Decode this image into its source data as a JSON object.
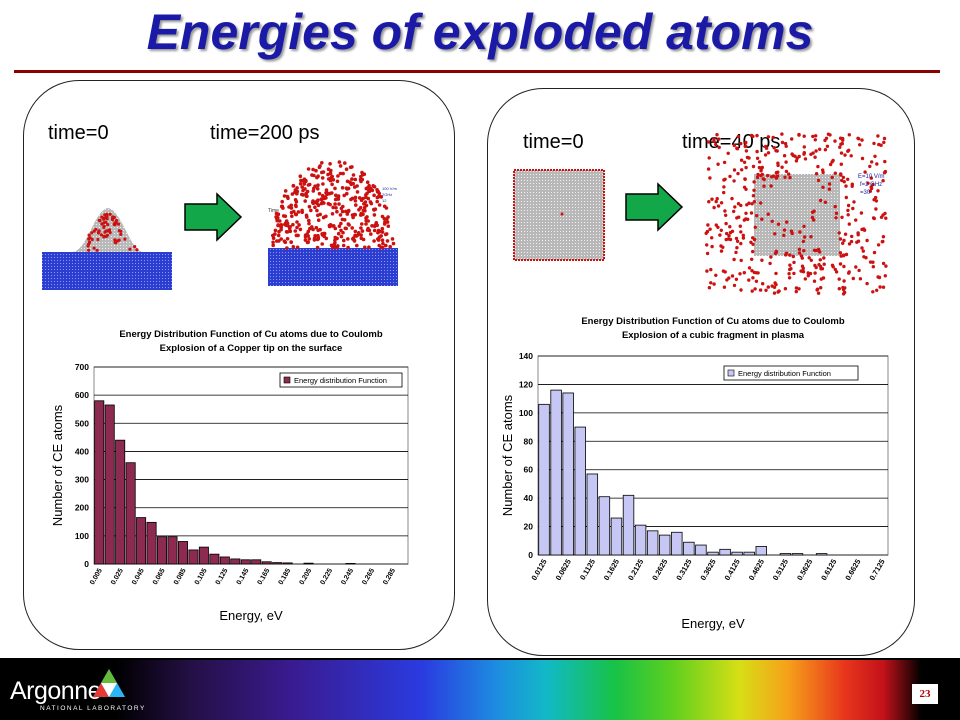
{
  "slide": {
    "title": "Energies of exploded atoms",
    "page_number": "23",
    "logo_name": "Argonne",
    "logo_sub": "NATIONAL LABORATORY"
  },
  "left": {
    "time_start": "time=0",
    "time_end": "time=200 ps",
    "annotations": [
      "Time",
      "100 V/m",
      "2GHz",
      "12"
    ]
  },
  "right": {
    "time_start": "time=0",
    "time_end": "time=40 ps",
    "annotations": [
      "E=10 V/m",
      "f=2 GHz",
      "=30"
    ]
  },
  "colors": {
    "left_bar": "#8c2a4f",
    "right_bar": "#c7c7f5",
    "atom_red": "#cc1111",
    "substrate_blue": "#2b3ed0",
    "arrow_green": "#12a84a",
    "title_blue": "#1a1aa6"
  },
  "chart_data": [
    {
      "type": "bar",
      "title": "Energy Distribution Function of Cu atoms due to Coulomb Explosion of a Copper tip on the surface",
      "title_lines": [
        "Energy Distribution Function of Cu atoms due to Coulomb",
        "Explosion of a Copper tip on the surface"
      ],
      "xlabel": "Energy, eV",
      "ylabel": "Number of CE atoms",
      "ylim": [
        0,
        700
      ],
      "yticks": [
        0,
        100,
        200,
        300,
        400,
        500,
        600,
        700
      ],
      "grid": true,
      "legend": "top-right",
      "series": [
        {
          "name": "Energy distribution Function",
          "values": [
            580,
            565,
            440,
            360,
            165,
            148,
            97,
            97,
            80,
            50,
            60,
            35,
            25,
            18,
            15,
            15,
            8,
            5,
            4,
            0,
            3,
            0,
            0,
            0,
            2,
            0,
            0,
            0,
            0,
            0
          ]
        }
      ],
      "categories": [
        "0.005",
        "0.015",
        "0.025",
        "0.035",
        "0.045",
        "0.055",
        "0.065",
        "0.075",
        "0.085",
        "0.095",
        "0.105",
        "0.115",
        "0.125",
        "0.135",
        "0.145",
        "0.155",
        "0.165",
        "0.175",
        "0.185",
        "0.195",
        "0.205",
        "0.215",
        "0.225",
        "0.235",
        "0.245",
        "0.255",
        "0.265",
        "0.275",
        "0.285",
        "0.295"
      ],
      "tick_labels": [
        "0.005",
        "0.025",
        "0.045",
        "0.065",
        "0.085",
        "0.105",
        "0.125",
        "0.145",
        "0.165",
        "0.185",
        "0.205",
        "0.225",
        "0.245",
        "0.265",
        "0.285"
      ]
    },
    {
      "type": "bar",
      "title": "Energy Distribution Function of Cu atoms due to Coulomb Explosion of a cubic fragment in plasma",
      "title_lines": [
        "Energy Distribution Function of Cu atoms due to Coulomb",
        "Explosion of a cubic fragment in plasma"
      ],
      "xlabel": "Energy, eV",
      "ylabel": "Number of CE atoms",
      "ylim": [
        0,
        140
      ],
      "yticks": [
        0,
        20,
        40,
        60,
        80,
        100,
        120,
        140
      ],
      "grid": true,
      "legend": "top-right",
      "series": [
        {
          "name": "Energy distribution Function",
          "values": [
            106,
            116,
            114,
            90,
            57,
            41,
            26,
            42,
            21,
            17,
            14,
            16,
            9,
            7,
            2,
            4,
            2,
            2,
            6,
            0,
            1,
            1,
            0,
            1,
            0,
            0,
            0,
            0,
            0
          ]
        }
      ],
      "categories": [
        "0.0125",
        "0.0375",
        "0.0625",
        "0.0875",
        "0.1125",
        "0.1375",
        "0.1625",
        "0.1875",
        "0.2125",
        "0.2375",
        "0.2625",
        "0.2875",
        "0.3125",
        "0.3375",
        "0.3625",
        "0.3875",
        "0.4125",
        "0.4375",
        "0.4625",
        "0.4875",
        "0.5125",
        "0.5375",
        "0.5625",
        "0.5875",
        "0.6125",
        "0.6375",
        "0.6625",
        "0.6875",
        "0.7125"
      ],
      "tick_labels": [
        "0.0125",
        "0.0625",
        "0.1125",
        "0.1625",
        "0.2125",
        "0.2625",
        "0.3125",
        "0.3625",
        "0.4125",
        "0.4625",
        "0.5125",
        "0.5625",
        "0.6125",
        "0.6625",
        "0.7125"
      ]
    }
  ]
}
